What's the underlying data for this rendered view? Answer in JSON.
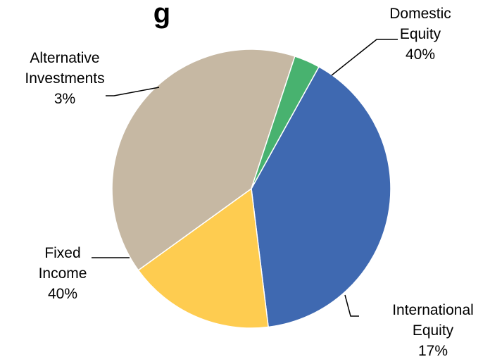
{
  "chart_data": {
    "type": "pie",
    "title": "g",
    "start_angle_deg": -61,
    "direction": "clockwise",
    "slices": [
      {
        "label": [
          "Domestic",
          "Equity",
          "40%"
        ],
        "value": 40,
        "color": "#3f69b1"
      },
      {
        "label": [
          "International",
          "Equity",
          "17%"
        ],
        "value": 17,
        "color": "#fecc50"
      },
      {
        "label": [
          "Fixed",
          "Income",
          "40%"
        ],
        "value": 40,
        "color": "#c6b8a3"
      },
      {
        "label": [
          "Alternative",
          "Investments",
          "3%"
        ],
        "value": 3,
        "color": "#48b26f"
      }
    ]
  }
}
